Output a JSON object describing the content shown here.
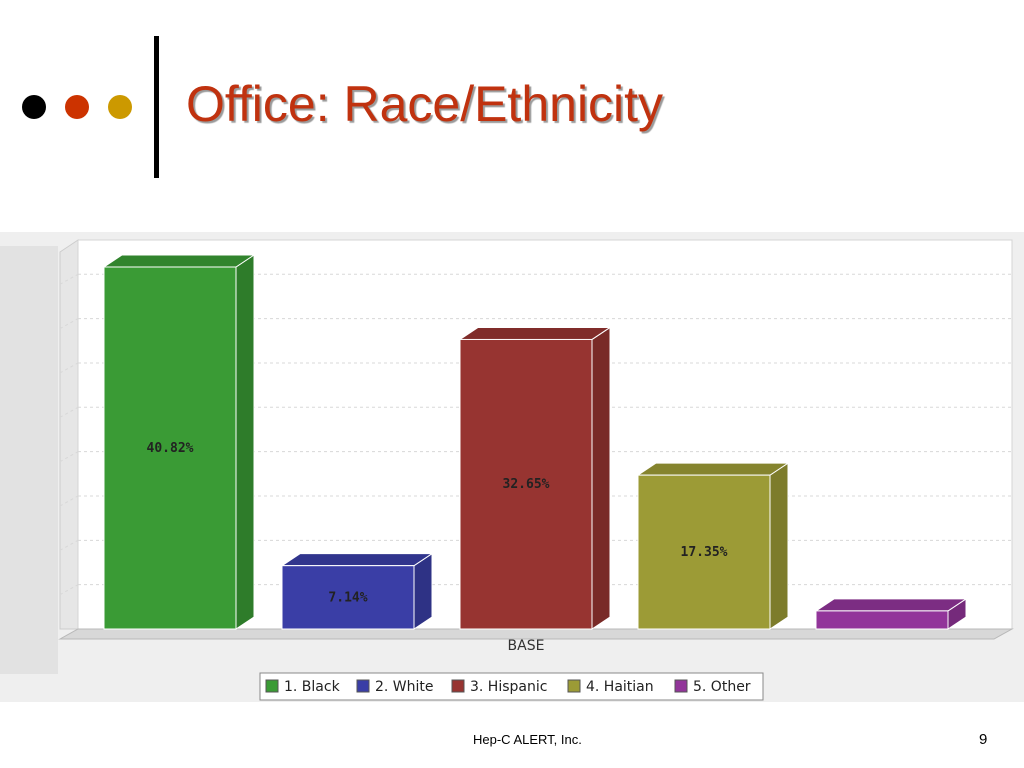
{
  "slide": {
    "title": "Office: Race/Ethnicity",
    "footer": "Hep-C ALERT, Inc.",
    "page_number": "9",
    "bullet_colors": [
      "#000000",
      "#cc3300",
      "#cc9900"
    ]
  },
  "chart_data": {
    "type": "bar",
    "style": "3d",
    "categories": [
      "BASE"
    ],
    "xlabel": "BASE",
    "ylabel": "",
    "ylim": [
      0,
      45
    ],
    "grid": true,
    "legend_placement": "bottom",
    "series": [
      {
        "name": "1. Black",
        "value": 40.82,
        "label": "40.82%",
        "color": "#3a9b35"
      },
      {
        "name": "2. White",
        "value": 7.14,
        "label": "7.14%",
        "color": "#3a3ea6"
      },
      {
        "name": "3. Hispanic",
        "value": 32.65,
        "label": "32.65%",
        "color": "#973431"
      },
      {
        "name": "4. Haitian",
        "value": 17.35,
        "label": "17.35%",
        "color": "#9c9b36"
      },
      {
        "name": "5. Other",
        "value": 2.04,
        "label": "",
        "color": "#92359a"
      }
    ]
  }
}
